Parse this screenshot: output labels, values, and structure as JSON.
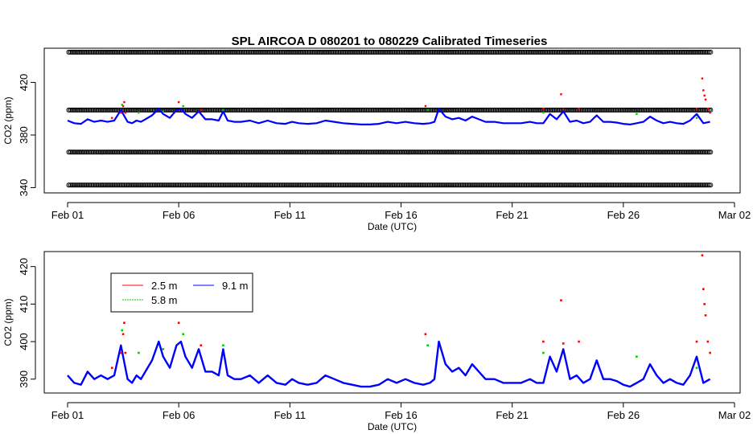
{
  "title": "SPL   AIRCOA  D    080201  to  080229   Calibrated Timeseries",
  "chart_data": [
    {
      "type": "scatter",
      "panel": "top",
      "xlabel": "Date (UTC)",
      "ylabel": "CO2 (ppm)",
      "xlim": [
        0,
        29.5
      ],
      "ylim": [
        336,
        446
      ],
      "xticks": [
        {
          "x": 0,
          "label": "Feb 01"
        },
        {
          "x": 5,
          "label": "Feb 06"
        },
        {
          "x": 10,
          "label": "Feb 11"
        },
        {
          "x": 15,
          "label": "Feb 16"
        },
        {
          "x": 20,
          "label": "Feb 21"
        },
        {
          "x": 25,
          "label": "Feb 26"
        },
        {
          "x": 30,
          "label": "Mar 02"
        }
      ],
      "yticks": [
        {
          "y": 340,
          "label": "340"
        },
        {
          "y": 380,
          "label": "380"
        },
        {
          "y": 420,
          "label": "420"
        }
      ],
      "calibration_levels_ppm": [
        342,
        367,
        399,
        443
      ],
      "calibration_x_range": [
        0.05,
        28.95
      ],
      "series_color": "#0000ff",
      "marker": "open-circle",
      "line_source": "bottom_panel.9.1 m"
    },
    {
      "type": "line",
      "panel": "bottom",
      "xlabel": "Date (UTC)",
      "ylabel": "CO2 (ppm)",
      "xlim": [
        0,
        29.5
      ],
      "ylim": [
        386.3,
        424
      ],
      "xticks": [
        {
          "x": 0,
          "label": "Feb 01"
        },
        {
          "x": 5,
          "label": "Feb 06"
        },
        {
          "x": 10,
          "label": "Feb 11"
        },
        {
          "x": 15,
          "label": "Feb 16"
        },
        {
          "x": 20,
          "label": "Feb 21"
        },
        {
          "x": 25,
          "label": "Feb 26"
        },
        {
          "x": 30,
          "label": "Mar 02"
        }
      ],
      "yticks": [
        {
          "y": 390,
          "label": "390"
        },
        {
          "y": 400,
          "label": "400"
        },
        {
          "y": 410,
          "label": "410"
        },
        {
          "y": 420,
          "label": "420"
        }
      ],
      "legend": {
        "position": "top-left",
        "entries": [
          {
            "label": "2.5 m",
            "color": "#ff0000"
          },
          {
            "label": "5.8 m",
            "color": "#00cc00"
          },
          {
            "label": "9.1 m",
            "color": "#0000ff"
          }
        ]
      },
      "series": [
        {
          "name": "9.1 m",
          "color": "#0000ff",
          "x": [
            0,
            0.3,
            0.6,
            0.9,
            1.2,
            1.5,
            1.8,
            2.1,
            2.4,
            2.7,
            2.9,
            3.1,
            3.3,
            3.5,
            3.8,
            4.1,
            4.3,
            4.6,
            4.9,
            5.1,
            5.3,
            5.6,
            5.9,
            6.2,
            6.5,
            6.8,
            7.0,
            7.2,
            7.5,
            7.8,
            8.2,
            8.6,
            9.0,
            9.4,
            9.8,
            10.1,
            10.4,
            10.8,
            11.2,
            11.6,
            12.0,
            12.4,
            12.8,
            13.2,
            13.6,
            14.0,
            14.4,
            14.8,
            15.2,
            15.6,
            16.0,
            16.3,
            16.5,
            16.7,
            17.0,
            17.3,
            17.6,
            17.9,
            18.2,
            18.5,
            18.8,
            19.2,
            19.6,
            20.0,
            20.4,
            20.8,
            21.1,
            21.4,
            21.7,
            22.0,
            22.3,
            22.6,
            22.9,
            23.2,
            23.5,
            23.8,
            24.1,
            24.4,
            24.7,
            25.0,
            25.3,
            25.6,
            25.9,
            26.2,
            26.5,
            26.8,
            27.1,
            27.4,
            27.7,
            28.0,
            28.3,
            28.6,
            28.9
          ],
          "values": [
            391,
            389,
            388.5,
            392,
            390,
            391,
            390,
            391,
            399,
            390,
            389,
            391,
            390,
            392,
            395,
            400,
            396,
            393,
            399,
            400,
            396,
            393,
            398,
            392,
            392,
            391,
            398,
            391,
            390,
            390,
            391,
            389,
            391,
            389,
            388.5,
            390,
            389,
            388.5,
            389,
            391,
            390,
            389,
            388.5,
            388,
            388,
            388.5,
            390,
            389,
            390,
            389,
            388.5,
            389,
            390,
            400,
            394,
            392,
            393,
            391,
            394,
            392,
            390,
            390,
            389,
            389,
            389,
            390,
            389,
            389,
            396,
            392,
            398,
            390,
            391,
            389,
            390,
            395,
            390,
            390,
            389.5,
            388.5,
            388,
            389,
            390,
            394,
            391,
            389,
            390,
            389,
            388.5,
            391,
            396,
            389,
            390
          ]
        },
        {
          "name": "2.5 m",
          "color": "#ff0000",
          "spikes": [
            {
              "x": 2.0,
              "y": 393
            },
            {
              "x": 2.4,
              "y": 397
            },
            {
              "x": 2.5,
              "y": 402
            },
            {
              "x": 2.55,
              "y": 405
            },
            {
              "x": 2.6,
              "y": 397
            },
            {
              "x": 5.0,
              "y": 405
            },
            {
              "x": 6.0,
              "y": 399
            },
            {
              "x": 16.1,
              "y": 402
            },
            {
              "x": 21.4,
              "y": 400
            },
            {
              "x": 22.2,
              "y": 411
            },
            {
              "x": 22.3,
              "y": 399.5
            },
            {
              "x": 23.0,
              "y": 400
            },
            {
              "x": 28.3,
              "y": 400
            },
            {
              "x": 28.55,
              "y": 423
            },
            {
              "x": 28.6,
              "y": 414
            },
            {
              "x": 28.65,
              "y": 410
            },
            {
              "x": 28.7,
              "y": 407
            },
            {
              "x": 28.8,
              "y": 400
            },
            {
              "x": 28.9,
              "y": 397
            }
          ]
        },
        {
          "name": "5.8 m",
          "color": "#00cc00",
          "spikes": [
            {
              "x": 2.45,
              "y": 403
            },
            {
              "x": 3.2,
              "y": 397
            },
            {
              "x": 4.3,
              "y": 398
            },
            {
              "x": 5.2,
              "y": 402
            },
            {
              "x": 7.0,
              "y": 399
            },
            {
              "x": 16.2,
              "y": 399
            },
            {
              "x": 21.4,
              "y": 397
            },
            {
              "x": 25.6,
              "y": 396
            },
            {
              "x": 28.3,
              "y": 393
            }
          ]
        }
      ]
    }
  ]
}
